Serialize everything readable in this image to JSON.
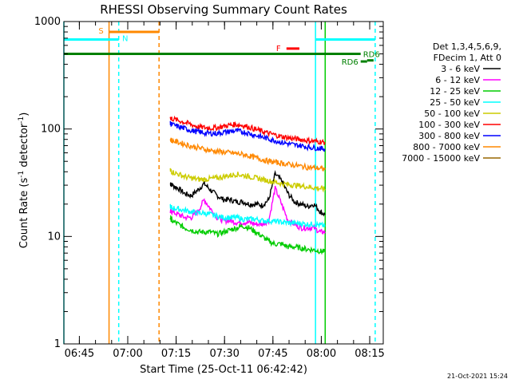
{
  "chart_data": {
    "type": "line",
    "title": "RHESSI Observing Summary Count Rates",
    "xlabel": "Start Time (25-Oct-11 06:42:42)",
    "ylabel_main": "Count Rate (s",
    "ylabel_sup1": "-1",
    "ylabel_mid": " detector",
    "ylabel_sup2": "-1",
    "ylabel_end": ")",
    "x_scale": "time",
    "x_range_minutes": [
      -2.5,
      96.5
    ],
    "x_tick_labels": [
      "06:45",
      "07:00",
      "07:15",
      "07:30",
      "07:45",
      "08:00",
      "08:15"
    ],
    "x_tick_minutes": [
      2.3,
      17.3,
      32.3,
      47.3,
      62.3,
      77.3,
      92.3
    ],
    "y_scale": "log",
    "ylim": [
      1,
      1000
    ],
    "y_tick_labels": [
      "1",
      "10",
      "100",
      "1000"
    ],
    "y_tick_values": [
      1,
      10,
      100,
      1000
    ],
    "legend_header": [
      "Det 1,3,4,5,6,9,",
      "FDecim 1, Att 0"
    ],
    "legend_placement": "right",
    "series": [
      {
        "name": "3 - 6 keV",
        "color": "#000000",
        "x": [
          30.5,
          31,
          33,
          35,
          37,
          39,
          41,
          43,
          45,
          47,
          49,
          51,
          53,
          55,
          57,
          59,
          61,
          63,
          65,
          67,
          69,
          71,
          73,
          75,
          77,
          78.5
        ],
        "y": [
          31,
          30,
          28,
          25,
          24,
          27,
          31,
          27,
          24,
          22,
          22,
          21,
          21,
          20,
          20,
          19.5,
          22,
          38,
          33,
          25,
          21,
          20,
          19,
          20,
          17,
          16
        ]
      },
      {
        "name": "6 - 12 keV",
        "color": "#ff00ff",
        "x": [
          30.5,
          31,
          33,
          35,
          37,
          39,
          41,
          43,
          45,
          47,
          49,
          51,
          53,
          55,
          57,
          59,
          61,
          63,
          65,
          67,
          69,
          71,
          73,
          75,
          77,
          78.5
        ],
        "y": [
          17,
          17,
          16,
          15,
          15,
          17,
          22,
          18,
          15,
          14,
          14,
          13.5,
          13.5,
          13.5,
          13,
          13,
          14,
          28,
          20,
          14,
          13,
          12,
          12,
          12,
          11,
          11
        ]
      },
      {
        "name": "12 - 25 keV",
        "color": "#00cc00",
        "x": [
          30.5,
          31,
          33,
          35,
          37,
          39,
          41,
          43,
          45,
          47,
          49,
          51,
          53,
          55,
          57,
          59,
          61,
          63,
          65,
          67,
          69,
          71,
          73,
          75,
          77,
          78.5
        ],
        "y": [
          15,
          14,
          13,
          12,
          11.5,
          11,
          11,
          11,
          10.5,
          11,
          11.5,
          12,
          12.5,
          12,
          11,
          10,
          9,
          8.5,
          8.5,
          8,
          8,
          7.8,
          7.6,
          7.5,
          7.3,
          7.2
        ]
      },
      {
        "name": "25 - 50 keV",
        "color": "#00ffff",
        "x": [
          30.5,
          31,
          33,
          35,
          37,
          39,
          41,
          43,
          45,
          47,
          49,
          51,
          53,
          55,
          57,
          59,
          61,
          63,
          65,
          67,
          69,
          71,
          73,
          75,
          77,
          78.5
        ],
        "y": [
          19,
          18.5,
          18,
          17.5,
          17,
          16.5,
          16.5,
          16,
          15.5,
          15,
          15,
          15,
          14.5,
          14.5,
          14.5,
          14,
          14,
          13.8,
          13.6,
          13.4,
          13.3,
          13.2,
          13,
          13,
          12.8,
          12.5
        ]
      },
      {
        "name": "50 - 100 keV",
        "color": "#cccc00",
        "x": [
          30.5,
          31,
          33,
          35,
          37,
          39,
          41,
          43,
          45,
          47,
          49,
          51,
          53,
          55,
          57,
          59,
          61,
          63,
          65,
          67,
          69,
          71,
          73,
          75,
          77,
          78.5
        ],
        "y": [
          41,
          40,
          38,
          36,
          35,
          34,
          34,
          34.5,
          35,
          36,
          37,
          38,
          37,
          36,
          35,
          34,
          33,
          32,
          31,
          30.5,
          30,
          29.5,
          29,
          28.5,
          28,
          27.5
        ]
      },
      {
        "name": "100 - 300 keV",
        "color": "#ff0000",
        "x": [
          30.5,
          31,
          33,
          35,
          37,
          39,
          41,
          43,
          45,
          47,
          49,
          51,
          53,
          55,
          57,
          59,
          61,
          63,
          65,
          67,
          69,
          71,
          73,
          75,
          77,
          78.5
        ],
        "y": [
          128,
          125,
          120,
          115,
          110,
          105,
          103,
          102,
          103,
          106,
          109,
          110,
          108,
          104,
          99,
          95,
          91,
          88,
          85,
          83,
          81,
          80,
          78,
          77,
          76,
          75
        ]
      },
      {
        "name": "300 - 800 keV",
        "color": "#0000ff",
        "x": [
          30.5,
          31,
          33,
          35,
          37,
          39,
          41,
          43,
          45,
          47,
          49,
          51,
          53,
          55,
          57,
          59,
          61,
          63,
          65,
          67,
          69,
          71,
          73,
          75,
          77,
          78.5
        ],
        "y": [
          112,
          110,
          105,
          101,
          97,
          94,
          92,
          91,
          91,
          93,
          95,
          96,
          94,
          91,
          87,
          84,
          81,
          78,
          75,
          73,
          71,
          70,
          68,
          67,
          66,
          65
        ]
      },
      {
        "name": "800 - 7000 keV",
        "color": "#ff8800",
        "x": [
          30.5,
          31,
          33,
          35,
          37,
          39,
          41,
          43,
          45,
          47,
          49,
          51,
          53,
          55,
          57,
          59,
          61,
          63,
          65,
          67,
          69,
          71,
          73,
          75,
          77,
          78.5
        ],
        "y": [
          80,
          78,
          75,
          72,
          69,
          67,
          65,
          63,
          62,
          61,
          60,
          59,
          58,
          56,
          54,
          52,
          50,
          49,
          48,
          47,
          46,
          45,
          44,
          43.5,
          43,
          42
        ]
      },
      {
        "name": "7000 - 15000 keV",
        "color": "#996600",
        "x": [],
        "y": []
      }
    ],
    "annotations": {
      "S": {
        "label": "S",
        "color": "#ff8800",
        "x_range": [
          11.5,
          27
        ],
        "y": 800
      },
      "N": {
        "label": "N",
        "color": "#00ffff",
        "x_range": [
          -2.5,
          14.5
        ],
        "y": 680
      },
      "N2": {
        "label": "",
        "color": "#00ffff",
        "x_range": [
          75.5,
          94
        ],
        "y": 680
      },
      "F": {
        "label": "F",
        "color": "#ff0000",
        "x_range": [
          66.5,
          70.5
        ],
        "y": 560
      },
      "RD6": {
        "label": "RD6",
        "color": "#008000",
        "x_range": [
          -2.5,
          89.5
        ],
        "y": 500
      },
      "RD6b": {
        "label": "RD6",
        "color": "#008000",
        "x_range": [
          89.5,
          91.5
        ],
        "y": 425
      },
      "RD6b_tail": {
        "label": "",
        "color": "#008000",
        "x_range": [
          91.5,
          93.5
        ],
        "y": 435
      }
    },
    "vertical_lines": [
      {
        "x": -2.5,
        "color": "#00ffff",
        "style": "solid"
      },
      {
        "x": 11.5,
        "color": "#ff8800",
        "style": "solid"
      },
      {
        "x": 14.5,
        "color": "#00ffff",
        "style": "dashed"
      },
      {
        "x": 27.0,
        "color": "#ff8800",
        "style": "dashed"
      },
      {
        "x": 75.5,
        "color": "#00ffff",
        "style": "solid"
      },
      {
        "x": 78.5,
        "color": "#00cc00",
        "style": "solid"
      },
      {
        "x": 94.0,
        "color": "#00ffff",
        "style": "dashed"
      }
    ]
  },
  "footer": {
    "date": "21-Oct-2021 15:24"
  }
}
